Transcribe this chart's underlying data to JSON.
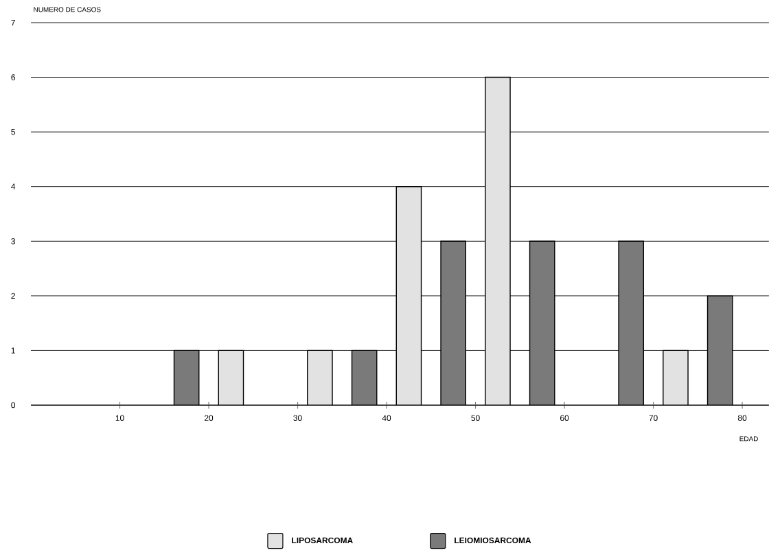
{
  "chart_data": {
    "type": "bar",
    "xlabel": "EDAD",
    "ylabel": "NUMERO DE CASOS",
    "series": [
      {
        "name": "LIPOSARCOMA",
        "color": "#e2e2e2",
        "x": [
          22.5,
          32.5,
          42.5,
          52.5,
          72.5
        ],
        "values": [
          1,
          1,
          4,
          6,
          1
        ]
      },
      {
        "name": "LEIOMIOSARCOMA",
        "color": "#7a7a7a",
        "x": [
          17.5,
          37.5,
          47.5,
          57.5,
          67.5,
          77.5
        ],
        "values": [
          1,
          1,
          3,
          3,
          3,
          2
        ]
      }
    ],
    "xlim": [
      0,
      83
    ],
    "xticks": [
      10,
      20,
      30,
      40,
      50,
      60,
      70,
      80
    ],
    "ylim": [
      0,
      7
    ],
    "yticks": [
      0,
      1,
      2,
      3,
      4,
      5,
      6,
      7
    ],
    "grid": "y",
    "legend": "bottom"
  }
}
